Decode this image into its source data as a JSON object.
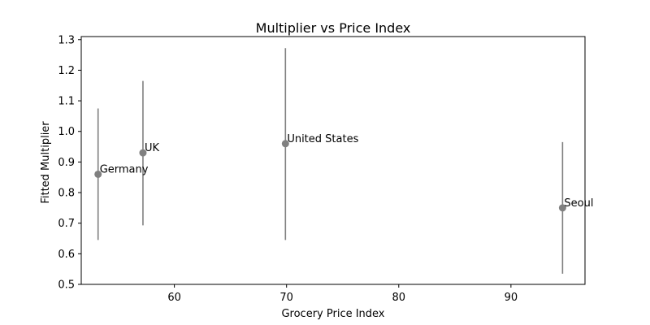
{
  "chart_data": {
    "type": "scatter",
    "title": "Multiplier vs Price Index",
    "xlabel": "Grocery Price Index",
    "ylabel": "Fitted Multiplier",
    "xlim": [
      51.7,
      96.6
    ],
    "ylim": [
      0.5,
      1.31
    ],
    "x_ticks": [
      60,
      70,
      80,
      90
    ],
    "y_ticks": [
      0.5,
      0.6,
      0.7,
      0.8,
      0.9,
      1.0,
      1.1,
      1.2,
      1.3
    ],
    "grid": false,
    "colors": {
      "marker": "#808080",
      "error_bar": "#808080",
      "axis": "#000000"
    },
    "points": [
      {
        "label": "Germany",
        "x": 53.2,
        "y": 0.86,
        "y_low": 0.645,
        "y_high": 1.075
      },
      {
        "label": "UK",
        "x": 57.2,
        "y": 0.93,
        "y_low": 0.693,
        "y_high": 1.165
      },
      {
        "label": "United States",
        "x": 69.9,
        "y": 0.96,
        "y_low": 0.645,
        "y_high": 1.272
      },
      {
        "label": "Seoul",
        "x": 94.6,
        "y": 0.75,
        "y_low": 0.535,
        "y_high": 0.965
      }
    ]
  }
}
